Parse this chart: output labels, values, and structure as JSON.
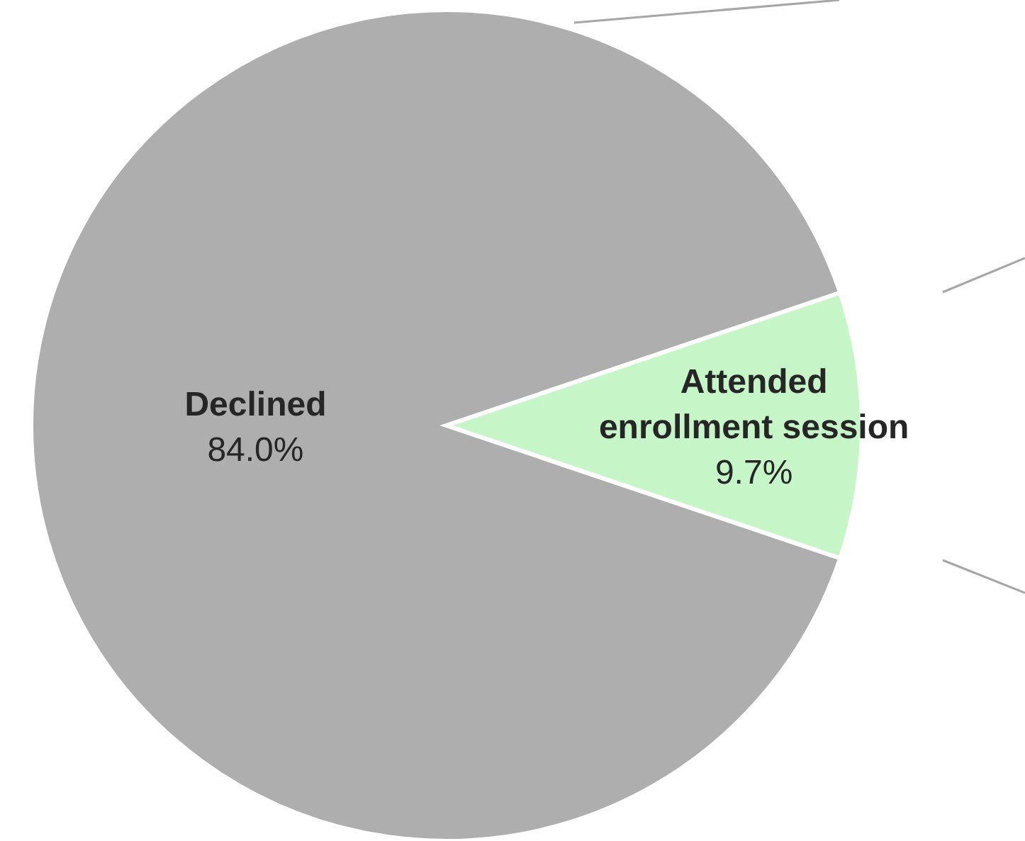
{
  "chart_data": {
    "type": "pie",
    "categories": [
      "Declined",
      "Attended enrollment session"
    ],
    "values": [
      84.0,
      9.7
    ],
    "colors": [
      "#aeaeae",
      "#c6f6c8"
    ],
    "value_labels": [
      "84.0%",
      "9.7%"
    ],
    "legend": false
  }
}
